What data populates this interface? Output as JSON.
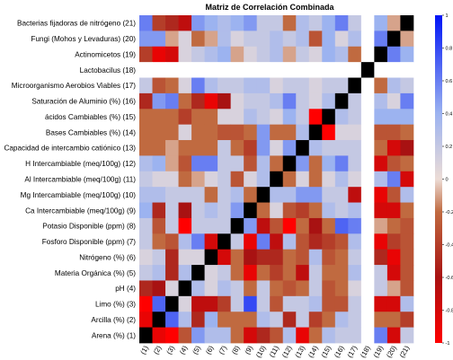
{
  "chart_data": {
    "type": "heatmap",
    "title": "Matriz de Correlación Combinada",
    "row_labels": [
      "Bacterias fijadoras de nitrógeno (21)",
      "Fungi (Mohos y Levaduras) (20)",
      "Actinomicetos (19)",
      "Lactobacilus (18)",
      "Microorganismo Aerobios Viables (17)",
      "Saturación de Aluminio (%) (16)",
      "ácidos Cambiables (%) (15)",
      "Bases Cambiables (%) (14)",
      "Capacidad de intercambio catiónico (13)",
      "H Intercambiable (meq/100g) (12)",
      "Al Intercambiable (meq/100g) (11)",
      "Mg Intercambiable (meq/100g) (10)",
      "Ca Intercambiable (meq/100g) (9)",
      "Potasio Disponible (ppm) (8)",
      "Fosforo Disponible (ppm) (7)",
      "Nitrógeno (%) (6)",
      "Materia Orgánica (%) (5)",
      "pH (4)",
      "Limo (%) (3)",
      "Arcilla (%) (2)",
      "Arena (%) (1)"
    ],
    "col_labels": [
      "(1)",
      "(2)",
      "(3)",
      "(4)",
      "(5)",
      "(6)",
      "(7)",
      "(8)",
      "(9)",
      "(10)",
      "(11)",
      "(12)",
      "(13)",
      "(14)",
      "(15)",
      "(16)",
      "(17)",
      "(18)",
      "(19)",
      "(20)",
      "(21)"
    ],
    "values": [
      [
        0.6,
        -0.4,
        -0.5,
        -0.7,
        0.5,
        0.4,
        0.3,
        0.4,
        0.5,
        0.2,
        0.2,
        -0.2,
        0.3,
        0.2,
        0.4,
        0.6,
        0.2,
        null,
        0.4,
        -0.1,
        1
      ],
      [
        0.5,
        0.5,
        -0.1,
        0.1,
        -0.2,
        -0.1,
        0.3,
        0.1,
        0.2,
        0.2,
        0.3,
        0.2,
        0.3,
        -0.3,
        0.4,
        0.1,
        0.3,
        null,
        0.6,
        1,
        -0.1
      ],
      [
        -0.4,
        -0.9,
        -0.8,
        0.1,
        0.2,
        0.3,
        0.4,
        -0.1,
        0.1,
        0.2,
        0.3,
        -0.1,
        0.2,
        0.1,
        0.4,
        0.3,
        -0.2,
        null,
        1,
        0.6,
        0.4
      ],
      [
        null,
        null,
        null,
        null,
        null,
        null,
        null,
        null,
        null,
        null,
        null,
        null,
        null,
        null,
        null,
        null,
        null,
        1,
        null,
        null,
        null
      ],
      [
        0.2,
        -0.3,
        -0.2,
        0.1,
        0.6,
        0.3,
        0.2,
        0.2,
        0.3,
        0.3,
        0.1,
        0.2,
        0.2,
        0.1,
        0.2,
        0.2,
        1,
        null,
        -0.2,
        0.3,
        0.2
      ],
      [
        -0.5,
        0.5,
        0.6,
        -0.2,
        -0.5,
        -0.9,
        -0.6,
        0.1,
        0.2,
        0.2,
        0.3,
        0.6,
        0.2,
        0.1,
        0.3,
        1,
        0.2,
        null,
        0.3,
        0.1,
        0.6
      ],
      [
        -0.2,
        -0.2,
        -0.2,
        -0.4,
        -0.2,
        -0.2,
        0.1,
        0.1,
        0.3,
        0.2,
        0.1,
        0.4,
        0.2,
        -1,
        1,
        0.3,
        0.2,
        null,
        0.4,
        0.4,
        0.4
      ],
      [
        -0.2,
        -0.2,
        -0.2,
        0.1,
        -0.2,
        -0.2,
        -0.3,
        -0.3,
        -0.2,
        0.5,
        -0.2,
        -0.2,
        0.3,
        1,
        -1,
        0.1,
        0.1,
        null,
        -0.3,
        -0.3,
        -0.2
      ],
      [
        -0.2,
        -0.2,
        -0.1,
        -0.2,
        -0.2,
        -0.2,
        0.2,
        -0.2,
        -0.4,
        0.5,
        0.1,
        0.5,
        1,
        0.3,
        0.2,
        0.2,
        0.2,
        null,
        -0.2,
        -0.8,
        -0.6
      ],
      [
        0.3,
        0.4,
        -0.1,
        -0.3,
        0.6,
        0.6,
        0.2,
        0.2,
        -0.3,
        0.3,
        -0.2,
        1,
        0.5,
        -0.2,
        0.4,
        0.6,
        0.2,
        null,
        -0.8,
        -0.3,
        -0.2
      ],
      [
        0.2,
        0.1,
        0.1,
        -0.2,
        -0.1,
        0.1,
        0.2,
        -0.3,
        0.1,
        0.3,
        1,
        -0.2,
        0.1,
        -0.2,
        0.1,
        0.3,
        0.1,
        null,
        0.3,
        0.6,
        -0.8
      ],
      [
        0.3,
        0.3,
        0.2,
        0.2,
        0.2,
        -0.2,
        0.2,
        0.3,
        -0.2,
        1,
        0.3,
        0.3,
        0.5,
        0.5,
        0.2,
        0.2,
        -0.7,
        null,
        -0.9,
        -0.3,
        0.3
      ],
      [
        0.4,
        -0.5,
        0.2,
        -0.6,
        0.2,
        0.3,
        0.2,
        0.5,
        1,
        -0.2,
        0.1,
        -0.3,
        -0.4,
        -0.2,
        0.3,
        0.2,
        0.3,
        null,
        -0.8,
        -0.8,
        -0.2
      ],
      [
        0.2,
        -0.3,
        0.2,
        -1,
        0.2,
        0.2,
        0.2,
        1,
        0.5,
        -0.7,
        -0.3,
        -1,
        -0.2,
        -0.6,
        -0.2,
        0.7,
        0.6,
        null,
        -0.1,
        -0.2,
        -0.3
      ],
      [
        0.2,
        -0.2,
        -0.3,
        0.3,
        0.6,
        -0.8,
        1,
        0.2,
        -0.9,
        0.6,
        -0.7,
        0.3,
        -0.3,
        -0.5,
        -0.4,
        -0.3,
        0.3,
        null,
        -0.9,
        -0.4,
        -0.3
      ],
      [
        0.1,
        0.2,
        -0.5,
        0.1,
        0.1,
        1,
        -0.8,
        -0.2,
        -0.6,
        -0.5,
        -0.5,
        -0.2,
        -0.3,
        0.3,
        -0.3,
        -0.2,
        0.2,
        null,
        -0.5,
        -0.9,
        -0.3
      ],
      [
        0.2,
        0.3,
        -0.5,
        0.3,
        1,
        0.1,
        0.2,
        -0.2,
        -0.9,
        -0.2,
        -0.4,
        -0.2,
        -0.7,
        0.2,
        -0.2,
        -0.2,
        0.3,
        null,
        0.2,
        -0.8,
        -0.3
      ],
      [
        -0.5,
        -0.6,
        0.1,
        1,
        0.3,
        0.1,
        0.3,
        0.2,
        -0.2,
        0.2,
        -0.2,
        -0.3,
        -0.2,
        0.2,
        -0.3,
        -0.2,
        0.1,
        null,
        0.2,
        -0.1,
        -0.3
      ],
      [
        -1,
        0.7,
        1,
        0.1,
        -0.7,
        -0.7,
        -0.4,
        0.2,
        0.8,
        0.2,
        -0.3,
        0.2,
        0.2,
        0.3,
        -0.3,
        -0.3,
        0.2,
        null,
        -0.8,
        -0.8,
        0.3
      ],
      [
        -0.9,
        1,
        0.7,
        0.3,
        -0.5,
        0.4,
        -0.2,
        -0.2,
        -0.2,
        0.3,
        0.2,
        -0.5,
        0.2,
        -0.4,
        -0.2,
        0.3,
        0.2,
        null,
        -0.2,
        -0.2,
        -0.4
      ],
      [
        1,
        -0.9,
        -1,
        -0.3,
        0.5,
        0.3,
        0.3,
        -0.2,
        -0.8,
        -0.5,
        -0.3,
        0.3,
        -0.9,
        -0.2,
        0.3,
        0.2,
        0.2,
        null,
        0.6,
        -0.8,
        0.2
      ]
    ],
    "colorbar_ticks": [
      "1",
      "0.8",
      "0.6",
      "0.4",
      "0.2",
      "0",
      "-0.2",
      "-0.4",
      "-0.6",
      "-0.8",
      "-1"
    ],
    "colorbar_values": [
      1,
      0.8,
      0.6,
      0.4,
      0.2,
      0,
      -0.2,
      -0.4,
      -0.6,
      -0.8,
      -1
    ],
    "vmin": -1,
    "vmax": 1,
    "colorscale": [
      [
        -1,
        "#ff0000"
      ],
      [
        -0.6,
        "#a81212"
      ],
      [
        -0.2,
        "#c06a40"
      ],
      [
        0,
        "#ecdcd6"
      ],
      [
        0.4,
        "#9cb3f0"
      ],
      [
        1,
        "#0014f6"
      ]
    ],
    "missing_color": "#ffffff",
    "diagonal_color": "#000000",
    "grid": false,
    "colorbar_position": "right"
  }
}
